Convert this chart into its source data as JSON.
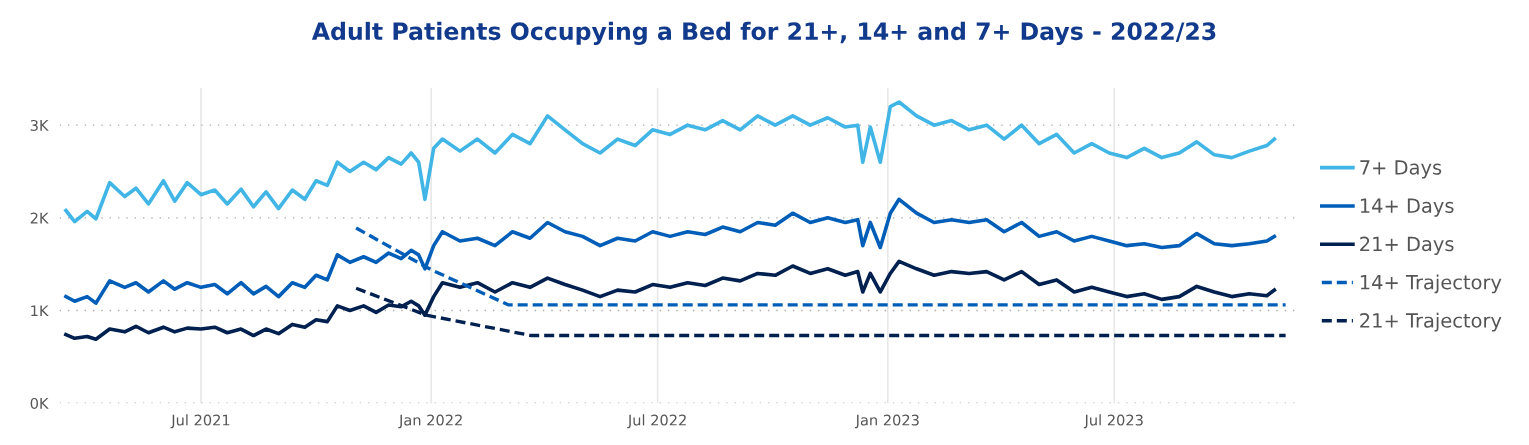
{
  "chart_data": {
    "type": "line",
    "title": "Adult Patients Occupying a Bed for 21+, 14+ and 7+ Days - 2022/23",
    "x": [
      "2021-03-15",
      "2021-03-22",
      "2021-04-01",
      "2021-04-08",
      "2021-04-19",
      "2021-05-01",
      "2021-05-10",
      "2021-05-20",
      "2021-06-01",
      "2021-06-10",
      "2021-06-20",
      "2021-07-01",
      "2021-07-12",
      "2021-07-22",
      "2021-08-02",
      "2021-08-12",
      "2021-08-22",
      "2021-09-01",
      "2021-09-12",
      "2021-09-22",
      "2021-10-01",
      "2021-10-10",
      "2021-10-18",
      "2021-10-28",
      "2021-11-08",
      "2021-11-18",
      "2021-11-28",
      "2021-12-08",
      "2021-12-16",
      "2021-12-22",
      "2021-12-27",
      "2022-01-03",
      "2022-01-10",
      "2022-01-24",
      "2022-02-07",
      "2022-02-21",
      "2022-03-07",
      "2022-03-21",
      "2022-04-04",
      "2022-04-18",
      "2022-05-02",
      "2022-05-16",
      "2022-05-30",
      "2022-06-13",
      "2022-06-27",
      "2022-07-11",
      "2022-07-25",
      "2022-08-08",
      "2022-08-22",
      "2022-09-05",
      "2022-09-19",
      "2022-10-03",
      "2022-10-17",
      "2022-10-31",
      "2022-11-14",
      "2022-11-28",
      "2022-12-08",
      "2022-12-12",
      "2022-12-18",
      "2022-12-26",
      "2023-01-03",
      "2023-01-10",
      "2023-01-24",
      "2023-02-07",
      "2023-02-21",
      "2023-03-07",
      "2023-03-21",
      "2023-04-04",
      "2023-04-18",
      "2023-05-02",
      "2023-05-16",
      "2023-05-30",
      "2023-06-13",
      "2023-06-27",
      "2023-07-11",
      "2023-07-25",
      "2023-08-08",
      "2023-08-22",
      "2023-09-05",
      "2023-09-19",
      "2023-10-03",
      "2023-10-17",
      "2023-10-31",
      "2023-11-06"
    ],
    "series": [
      {
        "name": "7+ Days",
        "color": "#41b6e6",
        "line_style": "solid",
        "values": [
          2080,
          1960,
          2070,
          1990,
          2380,
          2230,
          2320,
          2150,
          2400,
          2180,
          2380,
          2250,
          2300,
          2150,
          2310,
          2120,
          2280,
          2100,
          2300,
          2200,
          2400,
          2350,
          2600,
          2500,
          2600,
          2520,
          2650,
          2580,
          2700,
          2600,
          2200,
          2750,
          2850,
          2720,
          2850,
          2700,
          2900,
          2800,
          3100,
          2950,
          2800,
          2700,
          2850,
          2780,
          2950,
          2900,
          3000,
          2950,
          3050,
          2950,
          3100,
          3000,
          3100,
          3000,
          3080,
          2980,
          3000,
          2600,
          2980,
          2600,
          3200,
          3250,
          3100,
          3000,
          3050,
          2950,
          3000,
          2850,
          3000,
          2800,
          2900,
          2700,
          2800,
          2700,
          2650,
          2750,
          2650,
          2700,
          2820,
          2680,
          2650,
          2720,
          2780,
          2850
        ]
      },
      {
        "name": "14+ Days",
        "color": "#005eb8",
        "line_style": "solid",
        "values": [
          1150,
          1100,
          1150,
          1080,
          1320,
          1250,
          1300,
          1200,
          1320,
          1230,
          1300,
          1250,
          1280,
          1180,
          1300,
          1180,
          1260,
          1150,
          1300,
          1250,
          1380,
          1330,
          1600,
          1520,
          1580,
          1520,
          1620,
          1560,
          1650,
          1600,
          1450,
          1700,
          1850,
          1750,
          1780,
          1700,
          1850,
          1780,
          1950,
          1850,
          1800,
          1700,
          1780,
          1750,
          1850,
          1800,
          1850,
          1820,
          1900,
          1850,
          1950,
          1920,
          2050,
          1950,
          2000,
          1950,
          1980,
          1700,
          1950,
          1680,
          2050,
          2200,
          2050,
          1950,
          1980,
          1950,
          1980,
          1850,
          1950,
          1800,
          1850,
          1750,
          1800,
          1750,
          1700,
          1720,
          1680,
          1700,
          1830,
          1720,
          1700,
          1720,
          1750,
          1800
        ]
      },
      {
        "name": "21+ Days",
        "color": "#002050",
        "line_style": "solid",
        "values": [
          740,
          700,
          720,
          690,
          800,
          770,
          830,
          760,
          820,
          770,
          810,
          800,
          820,
          760,
          800,
          730,
          800,
          750,
          850,
          820,
          900,
          880,
          1050,
          1000,
          1050,
          980,
          1060,
          1040,
          1100,
          1050,
          950,
          1150,
          1300,
          1250,
          1300,
          1200,
          1300,
          1250,
          1350,
          1280,
          1220,
          1150,
          1220,
          1200,
          1280,
          1250,
          1300,
          1270,
          1350,
          1320,
          1400,
          1380,
          1480,
          1400,
          1450,
          1380,
          1420,
          1200,
          1400,
          1200,
          1400,
          1530,
          1450,
          1380,
          1420,
          1400,
          1420,
          1330,
          1420,
          1280,
          1330,
          1200,
          1250,
          1200,
          1150,
          1180,
          1120,
          1150,
          1260,
          1200,
          1150,
          1180,
          1160,
          1220
        ]
      },
      {
        "name": "14+ Trajectory",
        "color": "#005eb8",
        "line_style": "dashed",
        "x": [
          "2021-11-02",
          "2022-01-01",
          "2022-03-04",
          "2023-11-15"
        ],
        "values": [
          1890,
          1440,
          1060,
          1060
        ]
      },
      {
        "name": "21+ Trajectory",
        "color": "#002050",
        "line_style": "dashed",
        "x": [
          "2021-11-02",
          "2021-12-28",
          "2022-03-22",
          "2023-11-15"
        ],
        "values": [
          1240,
          950,
          730,
          730
        ]
      }
    ],
    "xlim": [
      "2021-03-10",
      "2023-11-25"
    ],
    "xticks": [
      {
        "value": "2021-07-01",
        "label": "Jul 2021"
      },
      {
        "value": "2022-01-01",
        "label": "Jan 2022"
      },
      {
        "value": "2022-07-01",
        "label": "Jul 2022"
      },
      {
        "value": "2023-01-01",
        "label": "Jan 2023"
      },
      {
        "value": "2023-07-01",
        "label": "Jul 2023"
      }
    ],
    "ylim": [
      0,
      3400
    ],
    "yticks": [
      {
        "value": 0,
        "label": "0K"
      },
      {
        "value": 1000,
        "label": "1K"
      },
      {
        "value": 2000,
        "label": "2K"
      },
      {
        "value": 3000,
        "label": "3K"
      }
    ],
    "grid": true,
    "legend": "right",
    "marker": "none"
  }
}
